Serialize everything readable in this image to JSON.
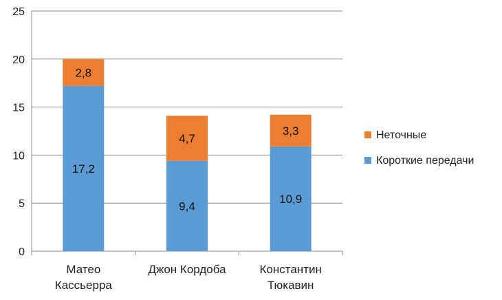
{
  "chart_data": {
    "type": "bar",
    "stacked": true,
    "categories": [
      [
        "Матео",
        "Кассьерра"
      ],
      [
        "Джон Кордоба"
      ],
      [
        "Константин",
        "Тюкавин"
      ]
    ],
    "series": [
      {
        "name": "Короткие передачи",
        "color": "#5B9BD5",
        "values": [
          17.2,
          9.4,
          10.9
        ],
        "labels": [
          "17,2",
          "9,4",
          "10,9"
        ]
      },
      {
        "name": "Неточные",
        "color": "#ED7D31",
        "values": [
          2.8,
          4.7,
          3.3
        ],
        "labels": [
          "2,8",
          "4,7",
          "3,3"
        ]
      }
    ],
    "ylim": [
      0,
      25
    ],
    "yticks": [
      0,
      5,
      10,
      15,
      20,
      25
    ],
    "grid": true,
    "legend": "right",
    "legend_order": [
      1,
      0
    ]
  }
}
